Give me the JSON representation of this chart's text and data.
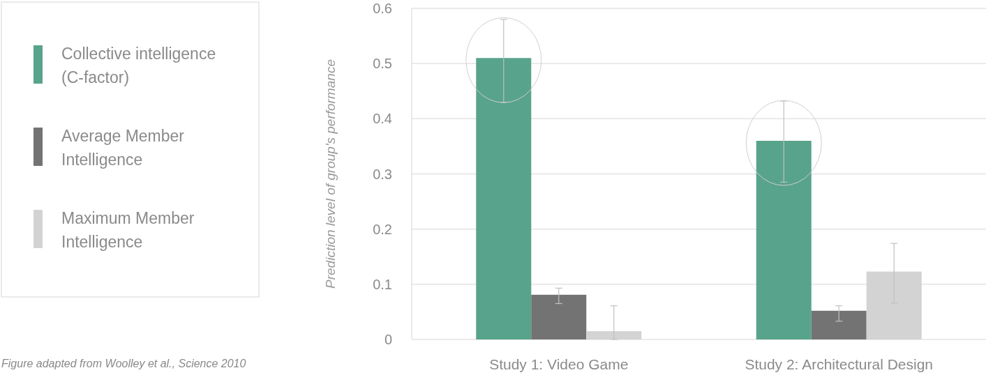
{
  "chart_data": {
    "type": "bar",
    "ylabel": "Prediction level of group's performance",
    "categories": [
      "Study 1: Video Game",
      "Study 2: Architectural Design"
    ],
    "series": [
      {
        "name": "Collective intelligence (C-factor)",
        "color": "#58a38b",
        "values": [
          0.51,
          0.36
        ],
        "errors": [
          [
            0.43,
            0.58
          ],
          [
            0.285,
            0.432
          ]
        ]
      },
      {
        "name": "Average Member Intelligence",
        "color": "#737373",
        "values": [
          0.081,
          0.052
        ],
        "errors": [
          [
            0.065,
            0.093
          ],
          [
            0.033,
            0.061
          ]
        ]
      },
      {
        "name": "Maximum Member Intelligence",
        "color": "#d3d3d3",
        "values": [
          0.015,
          0.123
        ],
        "errors": [
          [
            0,
            0.061
          ],
          [
            0.066,
            0.174
          ]
        ]
      }
    ],
    "ylim": [
      0,
      0.6
    ],
    "yticks": [
      0,
      0.1,
      0.2,
      0.3,
      0.4,
      0.5,
      0.6
    ],
    "grid": "y",
    "legend": "left",
    "annotations": [
      "Figure adapted from Woolley et al., Science 2010"
    ]
  }
}
